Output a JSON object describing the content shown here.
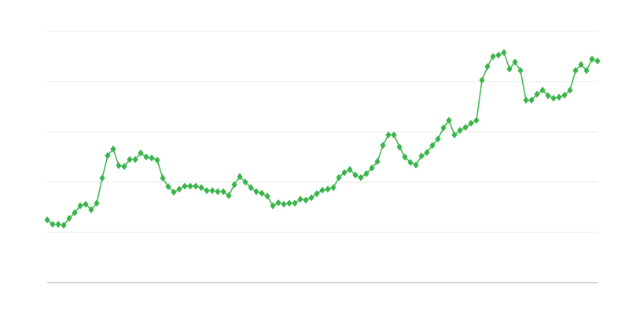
{
  "chart_data": {
    "type": "line",
    "title": "",
    "xlabel": "",
    "ylabel": "",
    "ylim": [
      0,
      5
    ],
    "grid": true,
    "legend": "none",
    "marker": "diamond",
    "colors": {
      "series": "#39b54a",
      "grid": "#ebebeb",
      "axis": "#aaaaaa"
    },
    "series": [
      {
        "values": [
          1.25,
          1.16,
          1.16,
          1.14,
          1.28,
          1.39,
          1.53,
          1.56,
          1.45,
          1.58,
          2.08,
          2.53,
          2.66,
          2.33,
          2.31,
          2.45,
          2.45,
          2.58,
          2.5,
          2.48,
          2.44,
          2.08,
          1.91,
          1.8,
          1.86,
          1.92,
          1.92,
          1.92,
          1.89,
          1.83,
          1.83,
          1.81,
          1.81,
          1.73,
          1.95,
          2.11,
          2.0,
          1.89,
          1.81,
          1.78,
          1.72,
          1.53,
          1.59,
          1.56,
          1.58,
          1.58,
          1.66,
          1.64,
          1.69,
          1.77,
          1.84,
          1.86,
          1.89,
          2.09,
          2.19,
          2.25,
          2.14,
          2.09,
          2.17,
          2.28,
          2.41,
          2.73,
          2.94,
          2.94,
          2.7,
          2.5,
          2.39,
          2.34,
          2.52,
          2.59,
          2.73,
          2.86,
          3.08,
          3.23,
          2.94,
          3.03,
          3.09,
          3.17,
          3.23,
          4.03,
          4.3,
          4.5,
          4.53,
          4.58,
          4.25,
          4.39,
          4.22,
          3.63,
          3.63,
          3.75,
          3.83,
          3.72,
          3.67,
          3.69,
          3.73,
          3.83,
          4.22,
          4.34,
          4.22,
          4.45,
          4.41
        ]
      }
    ]
  }
}
